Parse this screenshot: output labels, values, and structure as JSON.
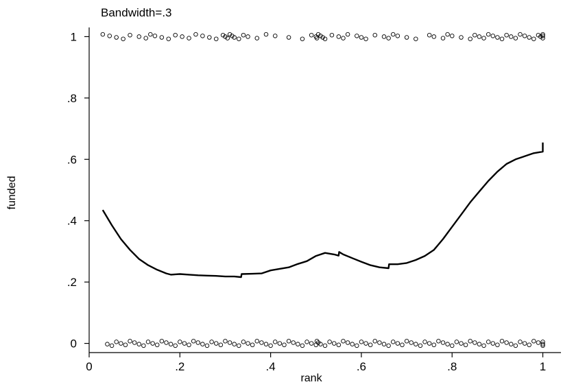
{
  "chart_data": {
    "type": "scatter",
    "subtitle": "Bandwidth=.3",
    "xlabel": "rank",
    "ylabel": "funded",
    "xlim": [
      0,
      1.04
    ],
    "ylim": [
      -0.03,
      1.03
    ],
    "grid": false,
    "x_ticks": [
      {
        "value": 0,
        "label": "0"
      },
      {
        "value": 0.2,
        "label": ".2"
      },
      {
        "value": 0.4,
        "label": ".4"
      },
      {
        "value": 0.6,
        "label": ".6"
      },
      {
        "value": 0.8,
        "label": ".8"
      },
      {
        "value": 1,
        "label": "1"
      }
    ],
    "y_ticks": [
      {
        "value": 0,
        "label": "0"
      },
      {
        "value": 0.2,
        "label": ".2"
      },
      {
        "value": 0.4,
        "label": ".4"
      },
      {
        "value": 0.6,
        "label": ".6"
      },
      {
        "value": 0.8,
        "label": ".8"
      },
      {
        "value": 1,
        "label": "1"
      }
    ],
    "series": [
      {
        "type": "scatter",
        "marker": "hollow-circle",
        "color": "#000000",
        "x": [
          0.03,
          0.045,
          0.06,
          0.075,
          0.09,
          0.11,
          0.125,
          0.135,
          0.145,
          0.16,
          0.175,
          0.19,
          0.205,
          0.22,
          0.235,
          0.25,
          0.265,
          0.28,
          0.295,
          0.3,
          0.305,
          0.31,
          0.315,
          0.32,
          0.33,
          0.34,
          0.35,
          0.37,
          0.39,
          0.41,
          0.44,
          0.47,
          0.49,
          0.5,
          0.502,
          0.505,
          0.51,
          0.515,
          0.52,
          0.535,
          0.55,
          0.56,
          0.57,
          0.59,
          0.6,
          0.61,
          0.63,
          0.65,
          0.66,
          0.67,
          0.68,
          0.7,
          0.72,
          0.75,
          0.76,
          0.78,
          0.79,
          0.8,
          0.82,
          0.84,
          0.85,
          0.86,
          0.87,
          0.88,
          0.89,
          0.9,
          0.91,
          0.92,
          0.93,
          0.94,
          0.95,
          0.96,
          0.97,
          0.98,
          0.99,
          0.995,
          1.0,
          1.0,
          1.0
        ],
        "y": [
          1,
          1,
          1,
          1,
          1,
          1,
          1,
          1,
          1,
          1,
          1,
          1,
          1,
          1,
          1,
          1,
          1,
          1,
          1,
          1,
          1,
          1,
          1,
          1,
          1,
          1,
          1,
          1,
          1,
          1,
          1,
          1,
          1,
          1,
          1,
          1,
          1,
          1,
          1,
          1,
          1,
          1,
          1,
          1,
          1,
          1,
          1,
          1,
          1,
          1,
          1,
          1,
          1,
          1,
          1,
          1,
          1,
          1,
          1,
          1,
          1,
          1,
          1,
          1,
          1,
          1,
          1,
          1,
          1,
          1,
          1,
          1,
          1,
          1,
          1,
          1,
          1,
          1,
          1
        ]
      },
      {
        "type": "scatter",
        "marker": "hollow-circle",
        "color": "#000000",
        "x": [
          0.04,
          0.05,
          0.06,
          0.07,
          0.08,
          0.09,
          0.1,
          0.11,
          0.12,
          0.13,
          0.14,
          0.15,
          0.16,
          0.17,
          0.18,
          0.19,
          0.2,
          0.21,
          0.22,
          0.23,
          0.24,
          0.25,
          0.26,
          0.27,
          0.28,
          0.29,
          0.3,
          0.31,
          0.32,
          0.33,
          0.34,
          0.35,
          0.36,
          0.37,
          0.38,
          0.39,
          0.4,
          0.41,
          0.42,
          0.43,
          0.44,
          0.45,
          0.46,
          0.47,
          0.48,
          0.49,
          0.5,
          0.502,
          0.505,
          0.51,
          0.52,
          0.53,
          0.54,
          0.55,
          0.56,
          0.57,
          0.58,
          0.59,
          0.6,
          0.61,
          0.62,
          0.63,
          0.64,
          0.65,
          0.66,
          0.67,
          0.68,
          0.69,
          0.7,
          0.71,
          0.72,
          0.73,
          0.74,
          0.75,
          0.76,
          0.77,
          0.78,
          0.79,
          0.8,
          0.81,
          0.82,
          0.83,
          0.84,
          0.85,
          0.86,
          0.87,
          0.88,
          0.89,
          0.9,
          0.91,
          0.92,
          0.93,
          0.94,
          0.95,
          0.96,
          0.97,
          0.98,
          0.99,
          1.0,
          1.0,
          1.0
        ],
        "y": [
          0,
          0,
          0,
          0,
          0,
          0,
          0,
          0,
          0,
          0,
          0,
          0,
          0,
          0,
          0,
          0,
          0,
          0,
          0,
          0,
          0,
          0,
          0,
          0,
          0,
          0,
          0,
          0,
          0,
          0,
          0,
          0,
          0,
          0,
          0,
          0,
          0,
          0,
          0,
          0,
          0,
          0,
          0,
          0,
          0,
          0,
          0,
          0,
          0,
          0,
          0,
          0,
          0,
          0,
          0,
          0,
          0,
          0,
          0,
          0,
          0,
          0,
          0,
          0,
          0,
          0,
          0,
          0,
          0,
          0,
          0,
          0,
          0,
          0,
          0,
          0,
          0,
          0,
          0,
          0,
          0,
          0,
          0,
          0,
          0,
          0,
          0,
          0,
          0,
          0,
          0,
          0,
          0,
          0,
          0,
          0,
          0,
          0,
          0,
          0,
          0
        ]
      },
      {
        "type": "line",
        "color": "#000000",
        "x": [
          0.03,
          0.05,
          0.07,
          0.09,
          0.11,
          0.13,
          0.15,
          0.17,
          0.18,
          0.2,
          0.22,
          0.24,
          0.26,
          0.28,
          0.3,
          0.32,
          0.335,
          0.336,
          0.36,
          0.38,
          0.4,
          0.42,
          0.44,
          0.46,
          0.48,
          0.5,
          0.52,
          0.54,
          0.55,
          0.551,
          0.56,
          0.58,
          0.6,
          0.62,
          0.64,
          0.66,
          0.661,
          0.68,
          0.7,
          0.72,
          0.74,
          0.76,
          0.78,
          0.8,
          0.82,
          0.84,
          0.86,
          0.88,
          0.9,
          0.92,
          0.94,
          0.96,
          0.98,
          1.0,
          1.0
        ],
        "y": [
          0.435,
          0.385,
          0.34,
          0.305,
          0.275,
          0.255,
          0.24,
          0.228,
          0.224,
          0.226,
          0.224,
          0.222,
          0.221,
          0.22,
          0.218,
          0.218,
          0.216,
          0.226,
          0.227,
          0.228,
          0.238,
          0.243,
          0.248,
          0.259,
          0.268,
          0.285,
          0.295,
          0.29,
          0.286,
          0.298,
          0.29,
          0.278,
          0.266,
          0.255,
          0.248,
          0.245,
          0.258,
          0.258,
          0.262,
          0.272,
          0.285,
          0.305,
          0.34,
          0.38,
          0.42,
          0.46,
          0.495,
          0.53,
          0.56,
          0.585,
          0.6,
          0.61,
          0.62,
          0.625,
          0.655
        ]
      }
    ]
  }
}
